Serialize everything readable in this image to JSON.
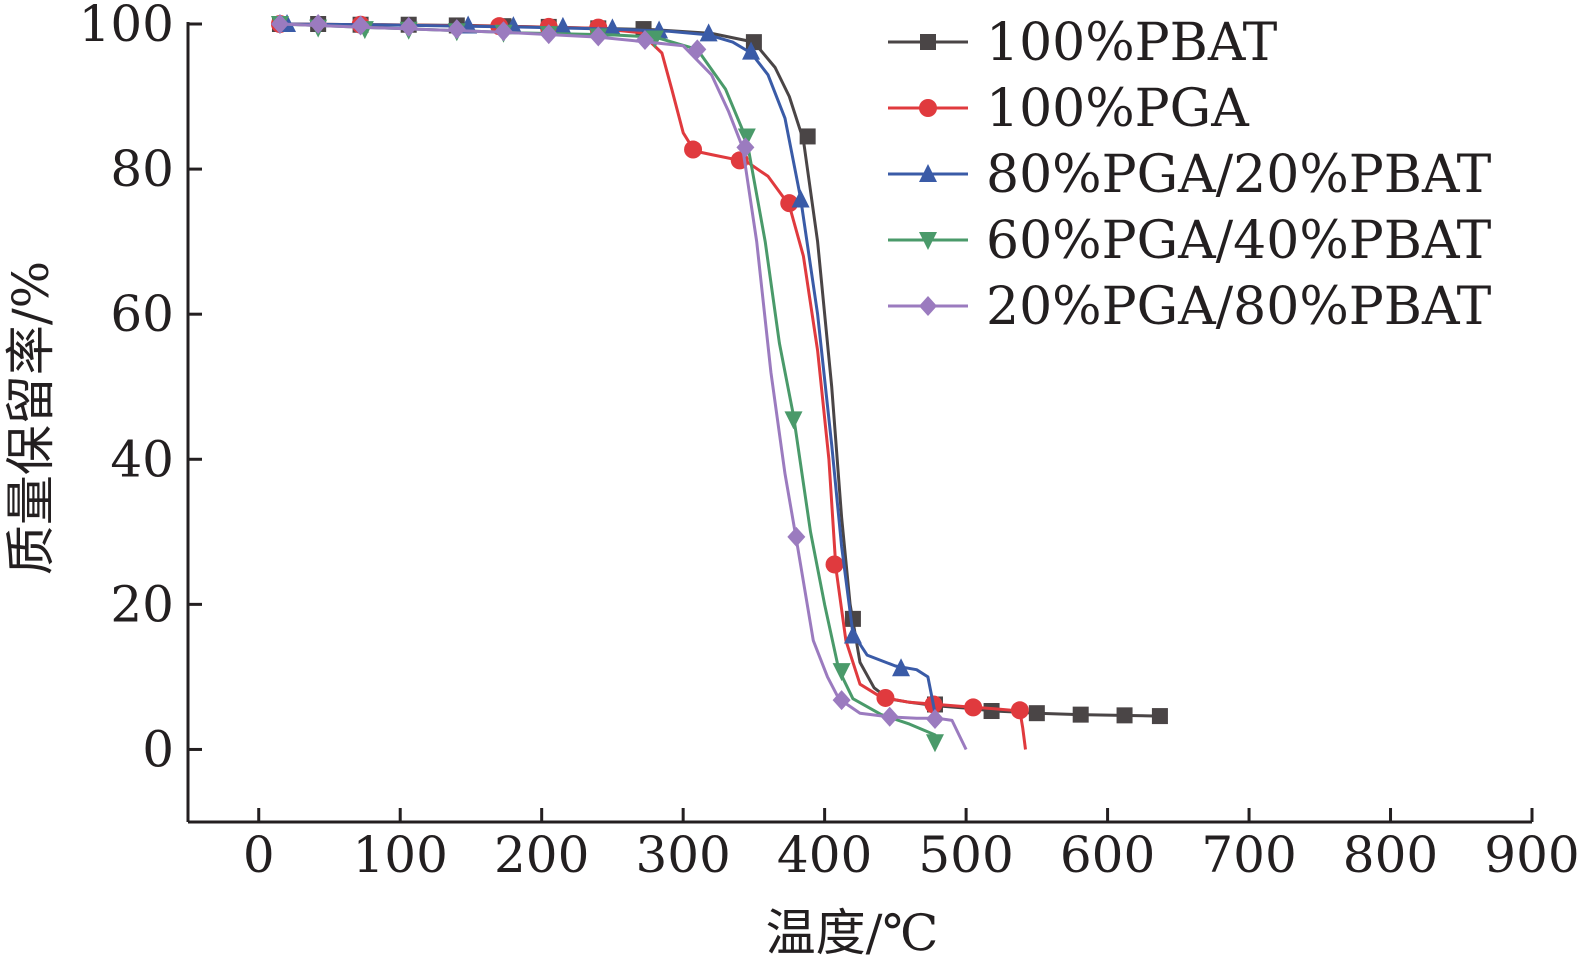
{
  "chart_data": {
    "type": "line",
    "title": "",
    "xlabel": "温度/℃",
    "ylabel": "质量保留率/%",
    "xlim": [
      -50,
      900
    ],
    "ylim": [
      -10,
      100
    ],
    "xticks": [
      "0",
      "100",
      "200",
      "300",
      "400",
      "500",
      "600",
      "700",
      "800",
      "900"
    ],
    "yticks": [
      "0",
      "20",
      "40",
      "60",
      "80",
      "100"
    ],
    "grid": false,
    "legend_position": "top-right",
    "series": [
      {
        "name": "100%PBAT",
        "color": "#4a4546",
        "marker": "square",
        "points": [
          [
            15,
            100
          ],
          [
            80,
            99.9
          ],
          [
            150,
            99.8
          ],
          [
            220,
            99.5
          ],
          [
            280,
            99.2
          ],
          [
            320,
            98.7
          ],
          [
            350,
            97.5
          ],
          [
            365,
            94
          ],
          [
            375,
            90
          ],
          [
            385,
            84
          ],
          [
            395,
            70
          ],
          [
            405,
            50
          ],
          [
            412,
            32
          ],
          [
            418,
            20
          ],
          [
            425,
            12
          ],
          [
            435,
            8.5
          ],
          [
            445,
            7
          ],
          [
            460,
            6.5
          ],
          [
            480,
            6
          ],
          [
            500,
            5.7
          ],
          [
            520,
            5.3
          ],
          [
            550,
            5
          ],
          [
            580,
            4.8
          ],
          [
            610,
            4.7
          ],
          [
            637,
            4.6
          ]
        ],
        "marker_points": [
          [
            15,
            100
          ],
          [
            42,
            100
          ],
          [
            72,
            99.9
          ],
          [
            106,
            99.9
          ],
          [
            140,
            99.8
          ],
          [
            173,
            99.7
          ],
          [
            205,
            99.6
          ],
          [
            240,
            99.4
          ],
          [
            272,
            99.3
          ],
          [
            350,
            97.5
          ],
          [
            388,
            84.5
          ],
          [
            420,
            18
          ],
          [
            478,
            6.2
          ],
          [
            518,
            5.3
          ],
          [
            550,
            5
          ],
          [
            581,
            4.8
          ],
          [
            612,
            4.7
          ],
          [
            637,
            4.6
          ]
        ]
      },
      {
        "name": "100%PGA",
        "color": "#e03a3e",
        "marker": "circle",
        "points": [
          [
            15,
            100
          ],
          [
            80,
            99.9
          ],
          [
            170,
            99.7
          ],
          [
            240,
            99.4
          ],
          [
            270,
            98.8
          ],
          [
            285,
            96
          ],
          [
            292,
            91
          ],
          [
            300,
            85
          ],
          [
            308,
            82.5
          ],
          [
            320,
            82
          ],
          [
            345,
            81
          ],
          [
            360,
            79
          ],
          [
            375,
            75
          ],
          [
            385,
            68
          ],
          [
            395,
            55
          ],
          [
            403,
            40
          ],
          [
            408,
            25
          ],
          [
            415,
            15
          ],
          [
            425,
            9
          ],
          [
            440,
            7.2
          ],
          [
            460,
            6.5
          ],
          [
            480,
            6.2
          ],
          [
            500,
            5.9
          ],
          [
            520,
            5.6
          ],
          [
            538,
            5.3
          ],
          [
            540,
            3
          ],
          [
            542,
            0
          ]
        ],
        "marker_points": [
          [
            15,
            100
          ],
          [
            72,
            99.9
          ],
          [
            170,
            99.7
          ],
          [
            205,
            99.6
          ],
          [
            240,
            99.5
          ],
          [
            307,
            82.7
          ],
          [
            340,
            81.2
          ],
          [
            375,
            75.3
          ],
          [
            407,
            25.5
          ],
          [
            443,
            7.1
          ],
          [
            477,
            6.2
          ],
          [
            505,
            5.8
          ],
          [
            538,
            5.4
          ]
        ]
      },
      {
        "name": "80%PGA/20%PBAT",
        "color": "#3a5ba7",
        "marker": "triangle-up",
        "points": [
          [
            15,
            100
          ],
          [
            80,
            99.9
          ],
          [
            180,
            99.6
          ],
          [
            250,
            99.3
          ],
          [
            290,
            99
          ],
          [
            318,
            98.5
          ],
          [
            335,
            97.5
          ],
          [
            348,
            96
          ],
          [
            360,
            93
          ],
          [
            372,
            87
          ],
          [
            383,
            76
          ],
          [
            395,
            60
          ],
          [
            405,
            42
          ],
          [
            412,
            28
          ],
          [
            420,
            16
          ],
          [
            430,
            13
          ],
          [
            450,
            11.5
          ],
          [
            465,
            11
          ],
          [
            473,
            10
          ],
          [
            476,
            7
          ],
          [
            478,
            5
          ]
        ],
        "marker_points": [
          [
            20,
            100
          ],
          [
            148,
            99.8
          ],
          [
            180,
            99.7
          ],
          [
            215,
            99.6
          ],
          [
            250,
            99.4
          ],
          [
            283,
            99.1
          ],
          [
            318,
            98.7
          ],
          [
            348,
            96.2
          ],
          [
            383,
            75.8
          ],
          [
            420,
            15.7
          ],
          [
            454,
            11.2
          ]
        ]
      },
      {
        "name": "60%PGA/40%PBAT",
        "color": "#4a9a6a",
        "marker": "triangle-down",
        "points": [
          [
            15,
            100
          ],
          [
            80,
            99.5
          ],
          [
            180,
            98.8
          ],
          [
            250,
            98.5
          ],
          [
            280,
            98.2
          ],
          [
            310,
            96.5
          ],
          [
            330,
            91
          ],
          [
            345,
            84
          ],
          [
            358,
            70
          ],
          [
            368,
            56
          ],
          [
            378,
            46
          ],
          [
            390,
            30
          ],
          [
            400,
            20
          ],
          [
            410,
            11
          ],
          [
            420,
            7
          ],
          [
            440,
            4.8
          ],
          [
            460,
            3.5
          ],
          [
            478,
            2
          ],
          [
            480,
            0.8
          ]
        ],
        "marker_points": [
          [
            15,
            100
          ],
          [
            42,
            99.5
          ],
          [
            75,
            99.3
          ],
          [
            106,
            99.2
          ],
          [
            140,
            99
          ],
          [
            173,
            98.8
          ],
          [
            205,
            98.6
          ],
          [
            240,
            98.3
          ],
          [
            280,
            98
          ],
          [
            345,
            84.5
          ],
          [
            378,
            45.5
          ],
          [
            412,
            10.8
          ],
          [
            478,
            1
          ]
        ]
      },
      {
        "name": "20%PGA/80%PBAT",
        "color": "#9b7bbf",
        "marker": "diamond",
        "points": [
          [
            15,
            100
          ],
          [
            80,
            99.5
          ],
          [
            180,
            98.8
          ],
          [
            240,
            98.2
          ],
          [
            275,
            97.5
          ],
          [
            300,
            97
          ],
          [
            320,
            93
          ],
          [
            332,
            88
          ],
          [
            342,
            83
          ],
          [
            352,
            70
          ],
          [
            362,
            52
          ],
          [
            372,
            38
          ],
          [
            380,
            29
          ],
          [
            392,
            15
          ],
          [
            402,
            10
          ],
          [
            410,
            7
          ],
          [
            425,
            5
          ],
          [
            445,
            4.5
          ],
          [
            465,
            4.3
          ],
          [
            480,
            4.3
          ],
          [
            490,
            4
          ],
          [
            495,
            2
          ],
          [
            500,
            0
          ]
        ],
        "marker_points": [
          [
            15,
            100
          ],
          [
            42,
            100
          ],
          [
            72,
            99.8
          ],
          [
            106,
            99.6
          ],
          [
            140,
            99.3
          ],
          [
            173,
            99
          ],
          [
            205,
            98.6
          ],
          [
            240,
            98.3
          ],
          [
            273,
            97.8
          ],
          [
            310,
            96.5
          ],
          [
            344,
            83
          ],
          [
            380,
            29.3
          ],
          [
            412,
            6.8
          ],
          [
            446,
            4.5
          ],
          [
            478,
            4.2
          ]
        ]
      }
    ]
  }
}
